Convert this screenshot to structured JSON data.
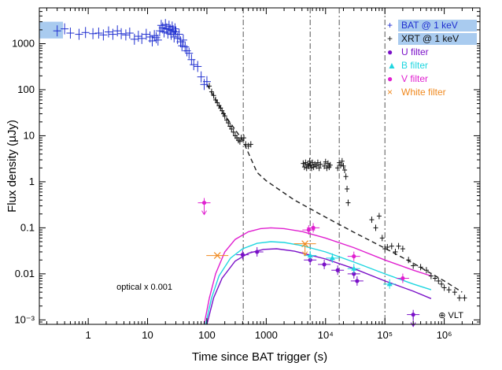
{
  "chart_data": {
    "type": "scatter",
    "xlabel": "Time since BAT trigger (s)",
    "ylabel": "Flux density (µJy)",
    "xscale": "log",
    "yscale": "log",
    "xlim": [
      0.15,
      4000000
    ],
    "ylim": [
      0.0008,
      6000
    ],
    "x_ticks": [
      {
        "value": 1,
        "label": "1"
      },
      {
        "value": 10,
        "label": "10"
      },
      {
        "value": 100,
        "label": "100"
      },
      {
        "value": 1000,
        "label": "1000"
      },
      {
        "value": 10000,
        "label": "10⁴"
      },
      {
        "value": 100000,
        "label": "10⁵"
      },
      {
        "value": 1000000,
        "label": "10⁶"
      }
    ],
    "y_ticks": [
      {
        "value": 0.001,
        "label": "10⁻³"
      },
      {
        "value": 0.01,
        "label": "0.01"
      },
      {
        "value": 0.1,
        "label": "0.1"
      },
      {
        "value": 1,
        "label": "1"
      },
      {
        "value": 10,
        "label": "10"
      },
      {
        "value": 100,
        "label": "100"
      },
      {
        "value": 1000,
        "label": "1000"
      }
    ],
    "vertical_lines": [
      410,
      5500,
      17000,
      100000
    ],
    "annotations": [
      {
        "text": "optical x 0.001",
        "x": 3,
        "y": 0.0045
      },
      {
        "text": "⊕ VLT",
        "x": 800000,
        "y": 0.0011
      }
    ],
    "highlight_band": {
      "y_range": [
        1300,
        3000
      ],
      "color": "#a9cbef"
    },
    "series": [
      {
        "name": "BAT @ 1 keV",
        "marker": "cross",
        "color": "#1f2fd0",
        "points": [
          [
            0.3,
            1900
          ],
          [
            0.4,
            2100
          ],
          [
            0.5,
            1700
          ],
          [
            0.7,
            1600
          ],
          [
            0.9,
            1750
          ],
          [
            1.2,
            1650
          ],
          [
            1.5,
            1700
          ],
          [
            1.8,
            1550
          ],
          [
            2.2,
            1800
          ],
          [
            2.6,
            1600
          ],
          [
            3.1,
            1900
          ],
          [
            3.6,
            1650
          ],
          [
            4.3,
            1550
          ],
          [
            5.0,
            1700
          ],
          [
            6.0,
            1250
          ],
          [
            7.0,
            1450
          ],
          [
            8.0,
            1300
          ],
          [
            9.5,
            1600
          ],
          [
            11,
            1400
          ],
          [
            12,
            1150
          ],
          [
            13,
            1500
          ],
          [
            14,
            1350
          ],
          [
            15,
            1200
          ],
          [
            16,
            1900
          ],
          [
            17,
            2500
          ],
          [
            18,
            2200
          ],
          [
            19,
            1800
          ],
          [
            20,
            2600
          ],
          [
            21,
            2100
          ],
          [
            22,
            1700
          ],
          [
            23,
            2400
          ],
          [
            24,
            2000
          ],
          [
            25,
            1600
          ],
          [
            26,
            2300
          ],
          [
            27,
            1900
          ],
          [
            28,
            1400
          ],
          [
            29,
            2100
          ],
          [
            30,
            1800
          ],
          [
            32,
            1300
          ],
          [
            34,
            1600
          ],
          [
            36,
            1100
          ],
          [
            38,
            900
          ],
          [
            40,
            1200
          ],
          [
            43,
            850
          ],
          [
            46,
            700
          ],
          [
            50,
            620
          ],
          [
            55,
            450
          ],
          [
            60,
            350
          ],
          [
            70,
            320
          ],
          [
            80,
            190
          ],
          [
            90,
            130
          ],
          [
            100,
            150
          ]
        ]
      },
      {
        "name": "XRT @ 1 keV",
        "marker": "cross",
        "color": "#111111",
        "points": [
          [
            110,
            120
          ],
          [
            120,
            90
          ],
          [
            130,
            75
          ],
          [
            140,
            60
          ],
          [
            150,
            52
          ],
          [
            160,
            45
          ],
          [
            170,
            40
          ],
          [
            180,
            35
          ],
          [
            190,
            30
          ],
          [
            200,
            27
          ],
          [
            215,
            22
          ],
          [
            230,
            19
          ],
          [
            245,
            16
          ],
          [
            260,
            14
          ],
          [
            280,
            12
          ],
          [
            300,
            10
          ],
          [
            320,
            9
          ],
          [
            340,
            8
          ],
          [
            360,
            7.5
          ],
          [
            380,
            9
          ],
          [
            420,
            9
          ],
          [
            450,
            6.5
          ],
          [
            500,
            6
          ],
          [
            550,
            6.5
          ],
          [
            4200,
            2.5
          ],
          [
            4400,
            2.1
          ],
          [
            4600,
            2.6
          ],
          [
            4800,
            2.0
          ],
          [
            5000,
            2.4
          ],
          [
            5200,
            2.2
          ],
          [
            5400,
            2.8
          ],
          [
            5600,
            2.3
          ],
          [
            5800,
            2.0
          ],
          [
            6000,
            2.6
          ],
          [
            6300,
            2.1
          ],
          [
            6600,
            2.4
          ],
          [
            7000,
            2.2
          ],
          [
            7400,
            2.6
          ],
          [
            7800,
            2.0
          ],
          [
            8200,
            2.4
          ],
          [
            9500,
            2.2
          ],
          [
            10000,
            2.7
          ],
          [
            10500,
            2.0
          ],
          [
            11000,
            2.5
          ],
          [
            11500,
            2.1
          ],
          [
            12000,
            2.3
          ],
          [
            16000,
            2.0
          ],
          [
            17000,
            2.6
          ],
          [
            18000,
            2.3
          ],
          [
            19000,
            2.8
          ],
          [
            20000,
            2.2
          ],
          [
            21000,
            1.8
          ],
          [
            22000,
            1.3
          ],
          [
            23000,
            0.7
          ],
          [
            24000,
            0.35
          ],
          [
            60000,
            0.15
          ],
          [
            70000,
            0.1
          ],
          [
            80000,
            0.18
          ],
          [
            90000,
            0.06
          ],
          [
            100000,
            0.035
          ],
          [
            110000,
            0.038
          ],
          [
            130000,
            0.04
          ],
          [
            150000,
            0.03
          ],
          [
            170000,
            0.04
          ],
          [
            200000,
            0.035
          ],
          [
            250000,
            0.02
          ],
          [
            300000,
            0.015
          ],
          [
            400000,
            0.014
          ],
          [
            500000,
            0.012
          ],
          [
            600000,
            0.009
          ],
          [
            700000,
            0.008
          ],
          [
            800000,
            0.007
          ],
          [
            900000,
            0.006
          ],
          [
            1000000,
            0.005
          ],
          [
            1200000,
            0.0045
          ],
          [
            1500000,
            0.004
          ],
          [
            1800000,
            0.003
          ],
          [
            2200000,
            0.003
          ]
        ]
      },
      {
        "name": "U filter",
        "marker": "circle",
        "color": "#7a10c8",
        "points": [
          [
            400,
            0.026
          ],
          [
            700,
            0.03
          ],
          [
            5500,
            0.02
          ],
          [
            9500,
            0.016
          ],
          [
            16000,
            0.012
          ],
          [
            30000,
            0.01
          ],
          [
            34000,
            0.007
          ],
          [
            300000,
            0.0013
          ]
        ]
      },
      {
        "name": "B filter",
        "marker": "triangle",
        "color": "#1fd6e0",
        "points": [
          [
            5500,
            0.025
          ],
          [
            13000,
            0.022
          ],
          [
            30000,
            0.013
          ],
          [
            120000,
            0.006
          ]
        ]
      },
      {
        "name": "V filter",
        "marker": "circle",
        "color": "#e020d0",
        "points": [
          [
            90,
            0.35
          ],
          [
            5200,
            0.09
          ],
          [
            6200,
            0.1
          ],
          [
            30000,
            0.024
          ],
          [
            200000,
            0.008
          ]
        ]
      },
      {
        "name": "White filter",
        "marker": "x",
        "color": "#f08a20",
        "points": [
          [
            150,
            0.025
          ],
          [
            4500,
            0.045
          ]
        ]
      }
    ],
    "model_curves": [
      {
        "name": "",
        "color": "#e020d0",
        "points": [
          [
            90,
            0.0008
          ],
          [
            110,
            0.003
          ],
          [
            140,
            0.01
          ],
          [
            200,
            0.03
          ],
          [
            300,
            0.056
          ],
          [
            500,
            0.082
          ],
          [
            800,
            0.096
          ],
          [
            1200,
            0.1
          ],
          [
            2000,
            0.096
          ],
          [
            4000,
            0.083
          ],
          [
            10000,
            0.06
          ],
          [
            30000,
            0.037
          ],
          [
            100000,
            0.02
          ],
          [
            300000,
            0.012
          ],
          [
            600000,
            0.009
          ]
        ]
      },
      {
        "name": "",
        "color": "#1fd6e0",
        "points": [
          [
            95,
            0.0008
          ],
          [
            120,
            0.003
          ],
          [
            160,
            0.009
          ],
          [
            250,
            0.022
          ],
          [
            400,
            0.035
          ],
          [
            700,
            0.046
          ],
          [
            1200,
            0.05
          ],
          [
            2000,
            0.048
          ],
          [
            4000,
            0.041
          ],
          [
            10000,
            0.03
          ],
          [
            30000,
            0.018
          ],
          [
            100000,
            0.01
          ],
          [
            300000,
            0.006
          ],
          [
            600000,
            0.0045
          ]
        ]
      },
      {
        "name": "",
        "color": "#7a10c8",
        "points": [
          [
            100,
            0.0008
          ],
          [
            130,
            0.003
          ],
          [
            180,
            0.008
          ],
          [
            300,
            0.019
          ],
          [
            500,
            0.028
          ],
          [
            900,
            0.034
          ],
          [
            1500,
            0.035
          ],
          [
            3000,
            0.031
          ],
          [
            10000,
            0.021
          ],
          [
            30000,
            0.013
          ],
          [
            100000,
            0.007
          ],
          [
            300000,
            0.0042
          ],
          [
            600000,
            0.0029
          ]
        ]
      },
      {
        "name": "",
        "color": "#222222",
        "dash": true,
        "points": [
          [
            100,
            130
          ],
          [
            200,
            28
          ],
          [
            400,
            8
          ],
          [
            700,
            1.6
          ],
          [
            1000,
            1.05
          ],
          [
            3000,
            0.4
          ],
          [
            10000,
            0.17
          ],
          [
            30000,
            0.08
          ],
          [
            100000,
            0.036
          ],
          [
            300000,
            0.017
          ],
          [
            1000000,
            0.007
          ],
          [
            2000000,
            0.004
          ]
        ]
      }
    ],
    "upper_limits": [
      {
        "x": 90,
        "y": 0.35,
        "color": "#e020d0"
      },
      {
        "x": 300000,
        "y": 0.0013,
        "color": "#7a10c8"
      },
      {
        "x": 4500,
        "y": 0.045,
        "color": "#f08a20"
      }
    ],
    "legend": {
      "position": "top-right",
      "entries": [
        {
          "label": "BAT @ 1 keV",
          "symbol": "+",
          "color": "#1f2fd0"
        },
        {
          "label": "XRT @ 1 keV",
          "symbol": "+",
          "color": "#111111"
        },
        {
          "label": "U filter",
          "symbol": "●",
          "color": "#7a10c8"
        },
        {
          "label": "B filter",
          "symbol": "▲",
          "color": "#1fd6e0"
        },
        {
          "label": "V filter",
          "symbol": "●",
          "color": "#e020d0"
        },
        {
          "label": "White filter",
          "symbol": "×",
          "color": "#f08a20"
        }
      ]
    }
  }
}
